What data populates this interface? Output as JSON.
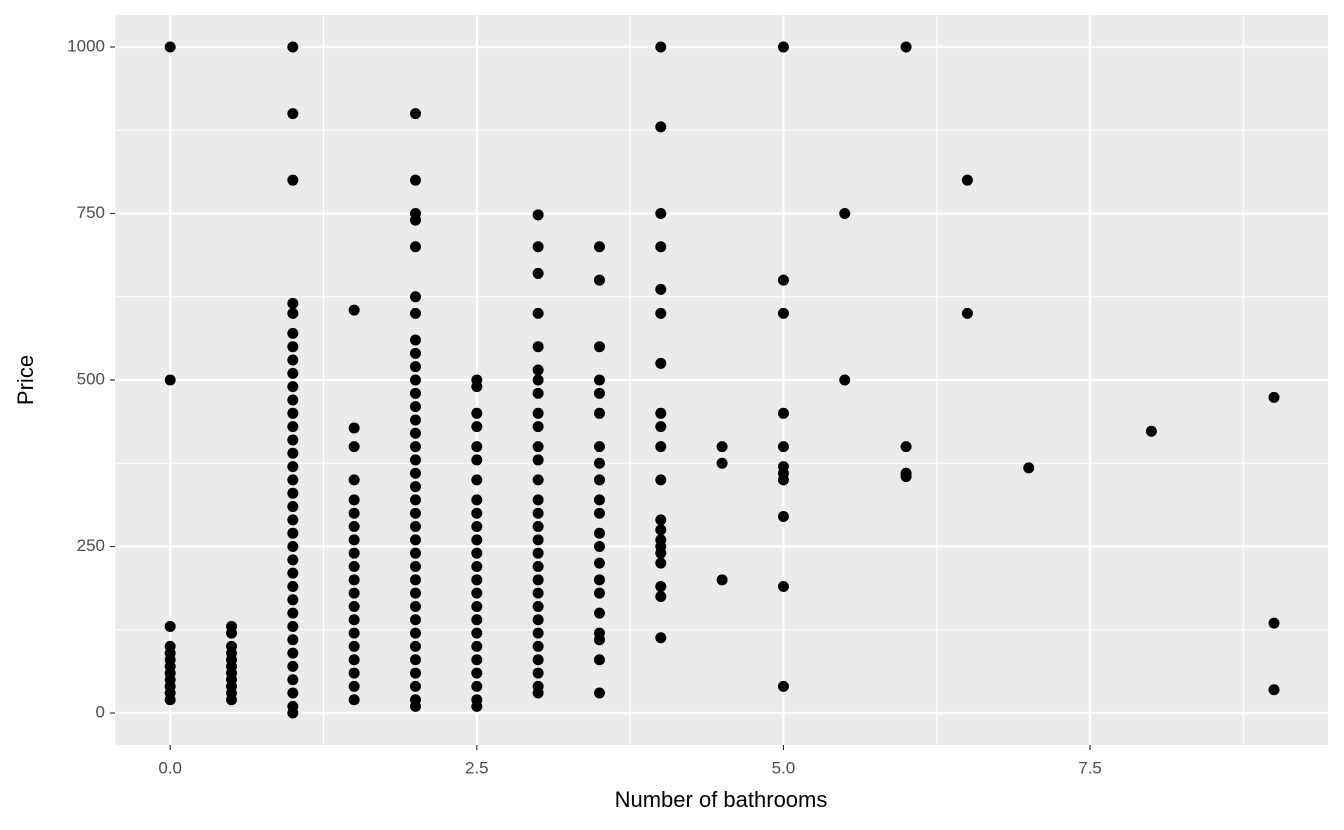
{
  "chart_data": {
    "type": "scatter",
    "xlabel": "Number of bathrooms",
    "ylabel": "Price",
    "color": "#000000",
    "background": "#ebebeb",
    "grid": true,
    "xlim": [
      -0.45,
      9.44
    ],
    "ylim": [
      -48,
      1048
    ],
    "xticks": [
      {
        "value": 0,
        "label": "0.0"
      },
      2.5,
      {
        "value": 5,
        "label": "5.0"
      },
      7.5
    ],
    "x_minor_ticks": [
      1.25,
      3.75,
      6.25,
      8.75
    ],
    "yticks": [
      0,
      250,
      500,
      750,
      1000
    ],
    "y_minor_ticks": [
      125,
      375,
      625,
      875
    ],
    "x": [
      0,
      0,
      0,
      0,
      0,
      0,
      0,
      0,
      0,
      0,
      0,
      0,
      0.5,
      0.5,
      0.5,
      0.5,
      0.5,
      0.5,
      0.5,
      0.5,
      0.5,
      0.5,
      0.5,
      1,
      1,
      1,
      1,
      1,
      1,
      1,
      1,
      1,
      1,
      1,
      1,
      1,
      1,
      1,
      1,
      1,
      1,
      1,
      1,
      1,
      1,
      1,
      1,
      1,
      1,
      1,
      1,
      1,
      1,
      1,
      1,
      1,
      1,
      1,
      1.5,
      1.5,
      1.5,
      1.5,
      1.5,
      1.5,
      1.5,
      1.5,
      1.5,
      1.5,
      1.5,
      1.5,
      1.5,
      1.5,
      1.5,
      1.5,
      1.5,
      1.5,
      1.5,
      1.5,
      2,
      2,
      2,
      2,
      2,
      2,
      2,
      2,
      2,
      2,
      2,
      2,
      2,
      2,
      2,
      2,
      2,
      2,
      2,
      2,
      2,
      2,
      2,
      2,
      2,
      2,
      2,
      2,
      2,
      2,
      2,
      2,
      2,
      2,
      2,
      2,
      2.5,
      2.5,
      2.5,
      2.5,
      2.5,
      2.5,
      2.5,
      2.5,
      2.5,
      2.5,
      2.5,
      2.5,
      2.5,
      2.5,
      2.5,
      2.5,
      2.5,
      2.5,
      2.5,
      2.5,
      2.5,
      2.5,
      2.5,
      2.5,
      3,
      3,
      3,
      3,
      3,
      3,
      3,
      3,
      3,
      3,
      3,
      3,
      3,
      3,
      3,
      3,
      3,
      3,
      3,
      3,
      3,
      3,
      3,
      3,
      3,
      3,
      3,
      3,
      3,
      3.5,
      3.5,
      3.5,
      3.5,
      3.5,
      3.5,
      3.5,
      3.5,
      3.5,
      3.5,
      3.5,
      3.5,
      3.5,
      3.5,
      3.5,
      3.5,
      3.5,
      3.5,
      3.5,
      3.5,
      3.5,
      4,
      4,
      4,
      4,
      4,
      4,
      4,
      4,
      4,
      4,
      4,
      4,
      4,
      4,
      4,
      4,
      4,
      4,
      4,
      4,
      4.5,
      4.5,
      4.5,
      5,
      5,
      5,
      5,
      5,
      5,
      5,
      5,
      5,
      5,
      5,
      5.5,
      5.5,
      6,
      6,
      6,
      6,
      6.5,
      6.5,
      7,
      8,
      9,
      9,
      9
    ],
    "y": [
      1000,
      500,
      130,
      100,
      90,
      80,
      70,
      60,
      50,
      40,
      30,
      20,
      130,
      120,
      100,
      90,
      80,
      70,
      60,
      50,
      40,
      30,
      20,
      1000,
      900,
      800,
      615,
      600,
      570,
      550,
      530,
      510,
      490,
      470,
      450,
      430,
      410,
      390,
      370,
      350,
      330,
      310,
      290,
      270,
      250,
      230,
      210,
      190,
      170,
      150,
      130,
      110,
      90,
      70,
      50,
      30,
      10,
      0,
      605,
      428,
      400,
      350,
      320,
      300,
      280,
      260,
      240,
      220,
      200,
      180,
      160,
      140,
      120,
      100,
      80,
      60,
      40,
      20,
      900,
      800,
      750,
      740,
      700,
      625,
      600,
      560,
      540,
      520,
      500,
      480,
      460,
      440,
      420,
      400,
      380,
      360,
      340,
      320,
      300,
      280,
      260,
      240,
      220,
      200,
      180,
      160,
      140,
      120,
      100,
      80,
      60,
      40,
      20,
      10,
      500,
      490,
      450,
      430,
      400,
      380,
      350,
      320,
      300,
      280,
      260,
      240,
      220,
      200,
      180,
      160,
      140,
      120,
      100,
      80,
      60,
      40,
      20,
      10,
      748,
      700,
      660,
      600,
      550,
      515,
      500,
      480,
      450,
      430,
      400,
      380,
      350,
      320,
      300,
      280,
      260,
      240,
      220,
      200,
      180,
      160,
      140,
      120,
      100,
      80,
      60,
      40,
      30,
      700,
      650,
      550,
      500,
      480,
      450,
      400,
      375,
      350,
      320,
      300,
      270,
      250,
      225,
      200,
      180,
      150,
      120,
      110,
      80,
      30,
      1000,
      880,
      750,
      700,
      636,
      600,
      525,
      450,
      430,
      400,
      350,
      290,
      275,
      260,
      250,
      240,
      225,
      190,
      175,
      113,
      400,
      375,
      200,
      1000,
      650,
      600,
      450,
      400,
      370,
      360,
      350,
      295,
      190,
      40,
      750,
      500,
      1000,
      400,
      360,
      355,
      800,
      600,
      368,
      423,
      474,
      135,
      35
    ]
  }
}
